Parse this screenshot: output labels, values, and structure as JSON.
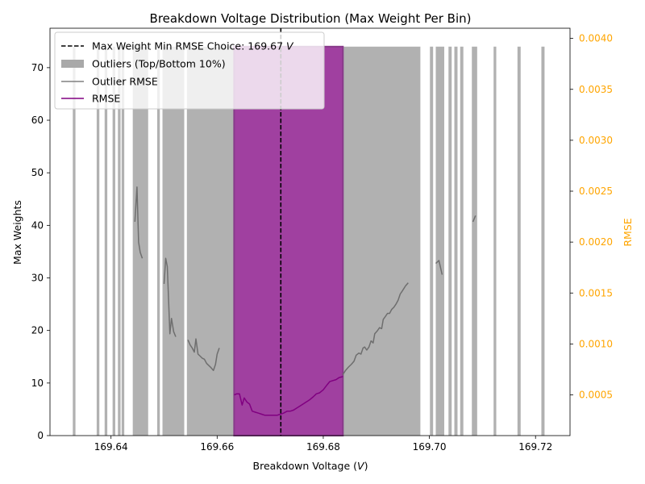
{
  "chart_data": {
    "type": "bar",
    "title": "Breakdown Voltage Distribution (Max Weight Per Bin)",
    "xlabel": "Breakdown Voltage (",
    "xlabel_unit": "V",
    "xlabel_close": ")",
    "ylabel": "Max Weights",
    "y2label": "RMSE",
    "xlim": [
      169.6285,
      169.7265
    ],
    "ylim": [
      0,
      77.5
    ],
    "y2lim": [
      0.0001,
      0.0041
    ],
    "x_ticks": [
      {
        "value": 169.64,
        "label": "169.64"
      },
      {
        "value": 169.66,
        "label": "169.66"
      },
      {
        "value": 169.68,
        "label": "169.68"
      },
      {
        "value": 169.7,
        "label": "169.70"
      },
      {
        "value": 169.72,
        "label": "169.72"
      }
    ],
    "y_ticks": [
      {
        "value": 0,
        "label": "0"
      },
      {
        "value": 10,
        "label": "10"
      },
      {
        "value": 20,
        "label": "20"
      },
      {
        "value": 30,
        "label": "30"
      },
      {
        "value": 40,
        "label": "40"
      },
      {
        "value": 50,
        "label": "50"
      },
      {
        "value": 60,
        "label": "60"
      },
      {
        "value": 70,
        "label": "70"
      }
    ],
    "y2_ticks": [
      {
        "value": 0.0005,
        "label": "0.0005"
      },
      {
        "value": 0.001,
        "label": "0.0010"
      },
      {
        "value": 0.0015,
        "label": "0.0015"
      },
      {
        "value": 0.002,
        "label": "0.0020"
      },
      {
        "value": 0.0025,
        "label": "0.0025"
      },
      {
        "value": 0.003,
        "label": "0.0030"
      },
      {
        "value": 0.0035,
        "label": "0.0035"
      },
      {
        "value": 0.004,
        "label": "0.0040"
      }
    ],
    "vline": {
      "x": 169.672,
      "color": "#000000"
    },
    "legend": {
      "placement": "top-left",
      "entries": [
        {
          "kind": "dashed",
          "label": "Max Weight Min RMSE Choice: 169.67 ",
          "unit": "V",
          "color": "#000000"
        },
        {
          "kind": "patch",
          "label": "Outliers (Top/Bottom 10%)",
          "color": "#a9a9a9"
        },
        {
          "kind": "line",
          "label": "Outlier RMSE",
          "color": "#808080"
        },
        {
          "kind": "line",
          "label": "RMSE",
          "color": "#800080"
        }
      ]
    },
    "colors": {
      "outlier_bar": "#a9a9a9",
      "selected_bar": "#a040a0",
      "outlier_rmse": "#6e6e6e",
      "rmse": "#800080",
      "secondary_axis": "#ffa500"
    },
    "outlier_bars": [
      {
        "x0": 169.6328,
        "x1": 169.6333,
        "height": 74
      },
      {
        "x0": 169.6373,
        "x1": 169.6378,
        "height": 74
      },
      {
        "x0": 169.6388,
        "x1": 169.6393,
        "height": 74
      },
      {
        "x0": 169.6403,
        "x1": 169.6408,
        "height": 74
      },
      {
        "x0": 169.6413,
        "x1": 169.6418,
        "height": 74
      },
      {
        "x0": 169.642,
        "x1": 169.6425,
        "height": 74
      },
      {
        "x0": 169.6441,
        "x1": 169.647,
        "height": 74
      },
      {
        "x0": 169.6487,
        "x1": 169.6492,
        "height": 74
      },
      {
        "x0": 169.6497,
        "x1": 169.6538,
        "height": 74
      },
      {
        "x0": 169.6543,
        "x1": 169.6632,
        "height": 74
      },
      {
        "x0": 169.6837,
        "x1": 169.6983,
        "height": 74
      },
      {
        "x0": 169.7001,
        "x1": 169.7007,
        "height": 74
      },
      {
        "x0": 169.7012,
        "x1": 169.7028,
        "height": 74
      },
      {
        "x0": 169.7036,
        "x1": 169.7042,
        "height": 74
      },
      {
        "x0": 169.7047,
        "x1": 169.7053,
        "height": 74
      },
      {
        "x0": 169.7058,
        "x1": 169.7064,
        "height": 74
      },
      {
        "x0": 169.708,
        "x1": 169.709,
        "height": 74
      },
      {
        "x0": 169.7121,
        "x1": 169.7126,
        "height": 74
      },
      {
        "x0": 169.7166,
        "x1": 169.7172,
        "height": 74
      },
      {
        "x0": 169.7211,
        "x1": 169.7217,
        "height": 74
      }
    ],
    "selected_bars": [
      {
        "x0": 169.6632,
        "x1": 169.6837,
        "height": 74
      }
    ],
    "series": [
      {
        "role": "outlier",
        "segments": [
          [
            [
              169.6445,
              0.0022
            ],
            [
              169.6449,
              0.00254
            ],
            [
              169.6452,
              0.002
            ],
            [
              169.6455,
              0.0019
            ],
            [
              169.6459,
              0.00184
            ]
          ],
          [
            [
              169.65,
              0.00159
            ],
            [
              169.6503,
              0.00184
            ],
            [
              169.6506,
              0.00176
            ],
            [
              169.6511,
              0.0011
            ],
            [
              169.6514,
              0.00125
            ],
            [
              169.6518,
              0.00112
            ],
            [
              169.6522,
              0.00107
            ]
          ],
          [
            [
              169.6545,
              0.00104
            ],
            [
              169.6549,
              0.00099
            ],
            [
              169.6553,
              0.00096
            ],
            [
              169.6557,
              0.00092
            ],
            [
              169.656,
              0.00105
            ],
            [
              169.6564,
              0.0009
            ],
            [
              169.6568,
              0.00088
            ],
            [
              169.6572,
              0.00086
            ],
            [
              169.6576,
              0.00085
            ],
            [
              169.658,
              0.00081
            ],
            [
              169.6584,
              0.00079
            ],
            [
              169.6588,
              0.00077
            ],
            [
              169.6593,
              0.00074
            ],
            [
              169.6597,
              0.0008
            ],
            [
              169.66,
              0.0009
            ],
            [
              169.6604,
              0.00096
            ]
          ],
          [
            [
              169.6837,
              0.0007
            ],
            [
              169.6842,
              0.00074
            ],
            [
              169.6847,
              0.00077
            ],
            [
              169.6853,
              0.0008
            ],
            [
              169.6858,
              0.00083
            ],
            [
              169.6862,
              0.00089
            ],
            [
              169.6867,
              0.00091
            ],
            [
              169.6871,
              0.0009
            ],
            [
              169.6875,
              0.00096
            ],
            [
              169.6878,
              0.00097
            ],
            [
              169.6882,
              0.00094
            ],
            [
              169.6886,
              0.00097
            ],
            [
              169.689,
              0.00103
            ],
            [
              169.6894,
              0.00101
            ],
            [
              169.6897,
              0.0011
            ],
            [
              169.6902,
              0.00113
            ],
            [
              169.6906,
              0.00116
            ],
            [
              169.691,
              0.00115
            ],
            [
              169.6913,
              0.00124
            ],
            [
              169.6917,
              0.00127
            ],
            [
              169.6921,
              0.0013
            ],
            [
              169.6925,
              0.0013
            ],
            [
              169.6929,
              0.00134
            ],
            [
              169.6933,
              0.00136
            ],
            [
              169.6937,
              0.00139
            ],
            [
              169.6941,
              0.00143
            ],
            [
              169.6945,
              0.00149
            ],
            [
              169.6949,
              0.00152
            ],
            [
              169.6955,
              0.00157
            ],
            [
              169.696,
              0.0016
            ]
          ],
          [
            [
              169.7012,
              0.00179
            ],
            [
              169.7018,
              0.00182
            ],
            [
              169.7024,
              0.00168
            ]
          ],
          [
            [
              169.7082,
              0.0022
            ],
            [
              169.7087,
              0.00226
            ]
          ]
        ]
      },
      {
        "role": "rmse",
        "segments": [
          [
            [
              169.6632,
              0.0005
            ],
            [
              169.6637,
              0.00051
            ],
            [
              169.6642,
              0.00051
            ],
            [
              169.6647,
              0.0004
            ],
            [
              169.6651,
              0.00047
            ],
            [
              169.6656,
              0.00043
            ],
            [
              169.6661,
              0.00041
            ],
            [
              169.6666,
              0.00034
            ],
            [
              169.6672,
              0.00033
            ],
            [
              169.6678,
              0.00032
            ],
            [
              169.6684,
              0.00031
            ],
            [
              169.669,
              0.0003
            ],
            [
              169.6696,
              0.0003
            ],
            [
              169.6702,
              0.0003
            ],
            [
              169.6708,
              0.0003
            ],
            [
              169.6713,
              0.0003
            ],
            [
              169.6719,
              0.00031
            ],
            [
              169.6725,
              0.00032
            ],
            [
              169.6732,
              0.00034
            ],
            [
              169.6738,
              0.00034
            ],
            [
              169.6744,
              0.00035
            ],
            [
              169.675,
              0.00037
            ],
            [
              169.6756,
              0.00039
            ],
            [
              169.6762,
              0.00041
            ],
            [
              169.6768,
              0.00043
            ],
            [
              169.6774,
              0.00045
            ],
            [
              169.6781,
              0.00048
            ],
            [
              169.6787,
              0.00051
            ],
            [
              169.6793,
              0.00052
            ],
            [
              169.68,
              0.00055
            ],
            [
              169.6806,
              0.00059
            ],
            [
              169.6812,
              0.00063
            ],
            [
              169.6818,
              0.00064
            ],
            [
              169.6824,
              0.00065
            ],
            [
              169.683,
              0.00067
            ],
            [
              169.6837,
              0.00068
            ]
          ]
        ]
      }
    ]
  }
}
